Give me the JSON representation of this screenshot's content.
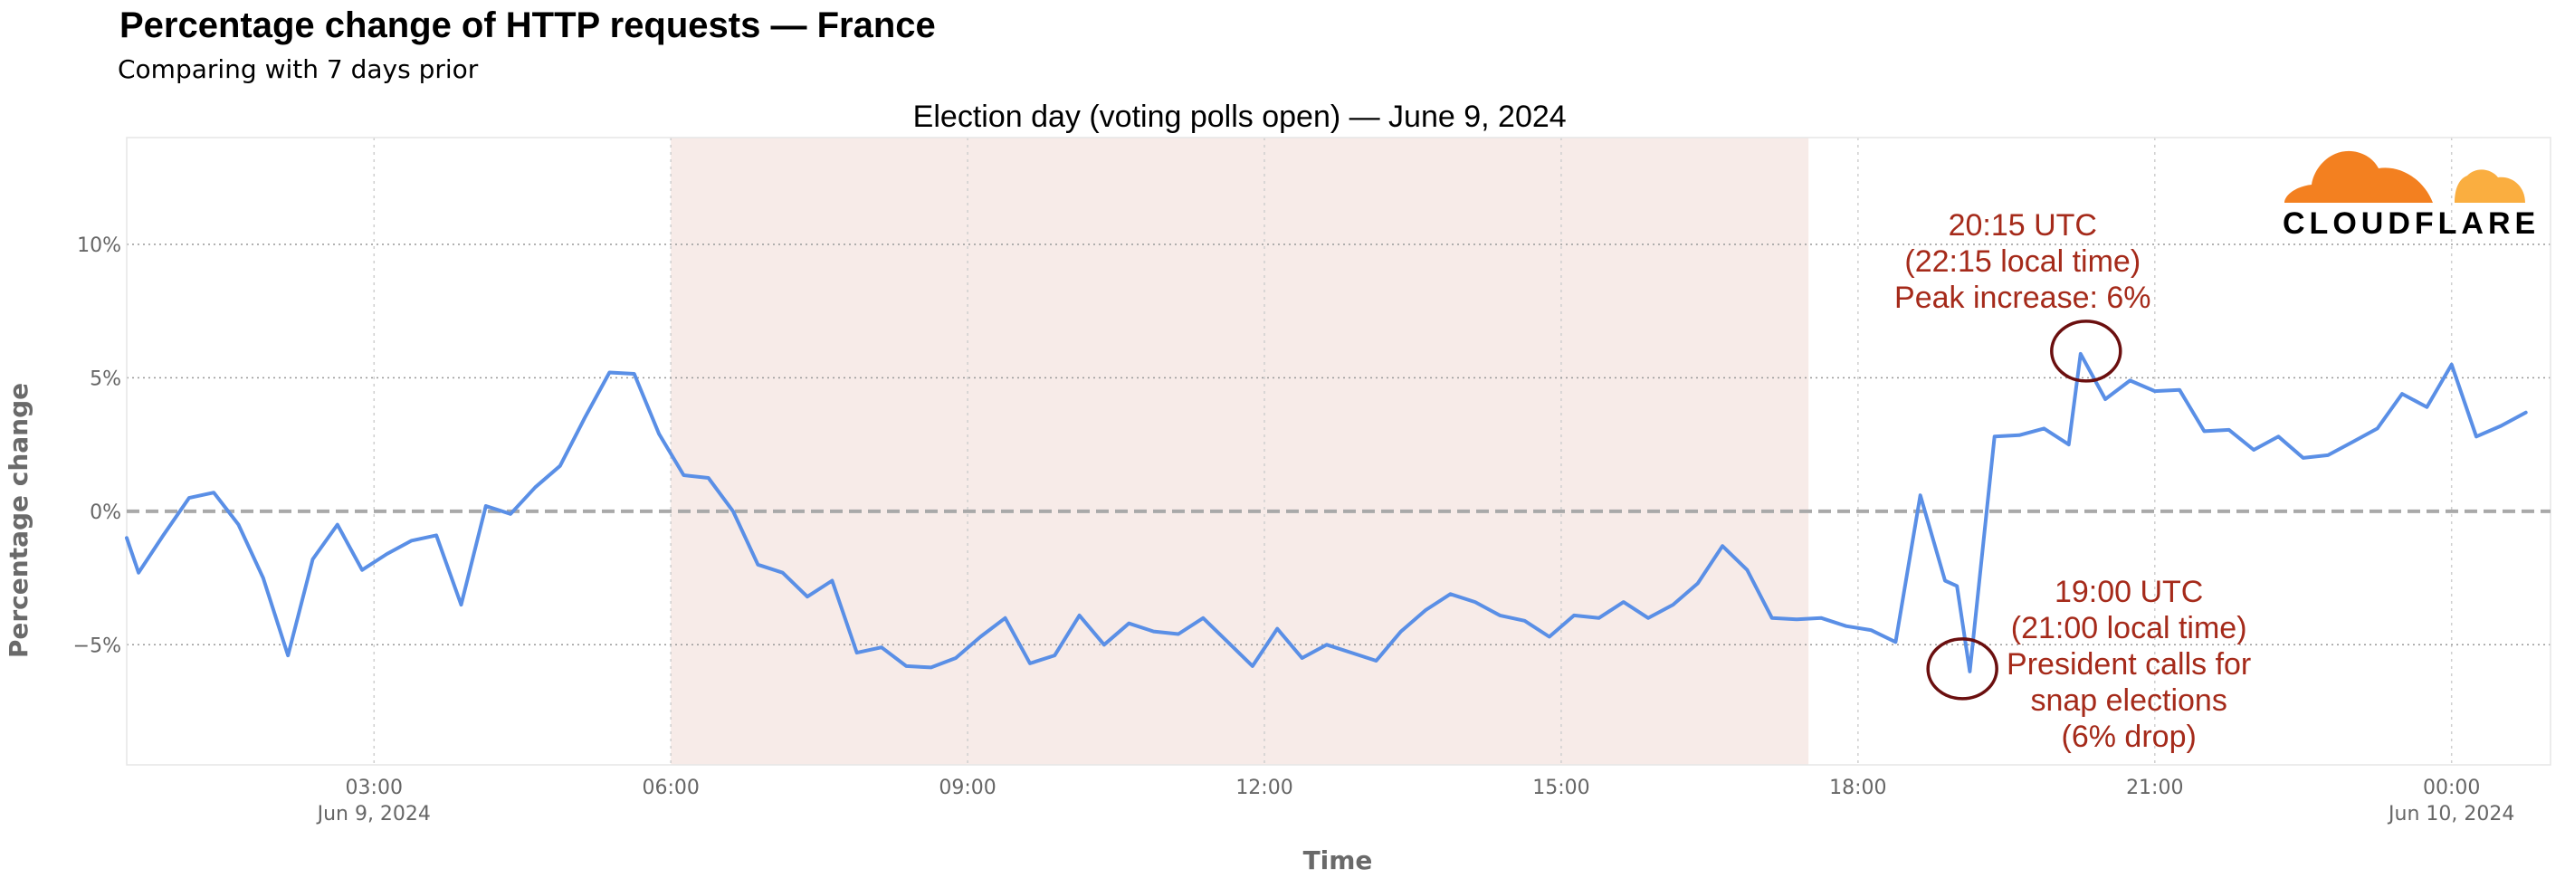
{
  "title": "Percentage change of HTTP requests — France",
  "subtitle": "Comparing with 7 days prior",
  "logo": {
    "text": "CLOUDFLARE",
    "colors": [
      "#f38020",
      "#faae40"
    ]
  },
  "chart_data": {
    "type": "line",
    "xlabel": "Time",
    "ylabel": "Percentage change",
    "x_range": [
      "2024-06-09 00:30",
      "2024-06-10 01:00"
    ],
    "ylim": [
      -9.5,
      14
    ],
    "grid": true,
    "line_color": "#5a8fe6",
    "x_ticks": [
      {
        "t": 3.0,
        "label": "03:00",
        "sublabel": "Jun 9, 2024"
      },
      {
        "t": 6.0,
        "label": "06:00",
        "sublabel": ""
      },
      {
        "t": 9.0,
        "label": "09:00",
        "sublabel": ""
      },
      {
        "t": 12.0,
        "label": "12:00",
        "sublabel": ""
      },
      {
        "t": 15.0,
        "label": "15:00",
        "sublabel": ""
      },
      {
        "t": 18.0,
        "label": "18:00",
        "sublabel": ""
      },
      {
        "t": 21.0,
        "label": "21:00",
        "sublabel": ""
      },
      {
        "t": 24.0,
        "label": "00:00",
        "sublabel": "Jun 10, 2024"
      }
    ],
    "y_ticks": [
      {
        "v": 10,
        "label": "10%"
      },
      {
        "v": 5,
        "label": "5%"
      },
      {
        "v": 0,
        "label": "0%"
      },
      {
        "v": -5,
        "label": "−5%"
      }
    ],
    "shaded_region": {
      "from": 6.0,
      "to": 17.5,
      "color": "#f7ebe8",
      "label": "Election day (voting polls open) — June 9, 2024"
    },
    "series": [
      {
        "x": [
          0.5,
          0.62,
          0.87,
          1.13,
          1.38,
          1.63,
          1.88,
          2.13,
          2.38,
          2.63,
          2.88,
          3.13,
          3.38,
          3.63,
          3.88,
          4.13,
          4.38,
          4.63,
          4.88,
          5.13,
          5.38,
          5.63,
          5.88,
          6.13,
          6.38,
          6.63,
          6.88,
          7.13,
          7.38,
          7.63,
          7.88,
          8.13,
          8.38,
          8.63,
          8.88,
          9.13,
          9.38,
          9.63,
          9.88,
          10.13,
          10.38,
          10.63,
          10.88,
          11.13,
          11.38,
          11.63,
          11.88,
          12.13,
          12.38,
          12.63,
          12.88,
          13.13,
          13.38,
          13.63,
          13.88,
          14.13,
          14.38,
          14.63,
          14.88,
          15.13,
          15.38,
          15.63,
          15.88,
          16.13,
          16.38,
          16.63,
          16.88,
          17.13,
          17.38,
          17.63,
          17.88,
          18.13,
          18.38,
          18.63,
          18.88,
          19.0,
          19.13,
          19.38,
          19.63,
          19.88,
          20.13,
          20.25,
          20.5,
          20.75,
          21.0,
          21.25,
          21.5,
          21.75,
          22.0,
          22.25,
          22.5,
          22.75,
          23.0,
          23.25,
          23.5,
          23.75,
          24.0,
          24.25,
          24.5,
          24.75
        ],
        "y": [
          -1.0,
          -2.3,
          -0.9,
          0.5,
          0.7,
          -0.5,
          -2.5,
          -5.4,
          -1.8,
          -0.5,
          -2.2,
          -1.6,
          -1.1,
          -0.9,
          -3.5,
          0.2,
          -0.1,
          0.9,
          1.7,
          3.5,
          5.2,
          5.15,
          2.9,
          1.35,
          1.25,
          0.0,
          -2.0,
          -2.3,
          -3.2,
          -2.6,
          -5.3,
          -5.1,
          -5.8,
          -5.85,
          -5.5,
          -4.7,
          -4.0,
          -5.7,
          -5.4,
          -3.9,
          -5.0,
          -4.2,
          -4.5,
          -4.6,
          -4.0,
          -4.9,
          -5.8,
          -4.4,
          -5.5,
          -5.0,
          -5.3,
          -5.6,
          -4.5,
          -3.7,
          -3.1,
          -3.4,
          -3.9,
          -4.1,
          -4.7,
          -3.9,
          -4.0,
          -3.4,
          -4.0,
          -3.5,
          -2.7,
          -1.3,
          -2.2,
          -4.0,
          -4.05,
          -4.0,
          -4.3,
          -4.45,
          -4.9,
          0.6,
          -2.6,
          -2.8,
          -6.0,
          2.8,
          2.85,
          3.1,
          2.5,
          5.9,
          4.2,
          4.9,
          4.5,
          4.55,
          3.0,
          3.05,
          2.3,
          2.8,
          2.0,
          2.1,
          2.6,
          3.1,
          4.4,
          3.9,
          5.5,
          2.8,
          3.2,
          3.7
        ]
      }
    ],
    "annotations": [
      {
        "t": 20.25,
        "v": 6.0,
        "lines": [
          "20:15 UTC",
          "(22:15 local time)",
          "Peak increase: 6%"
        ],
        "position": "above"
      },
      {
        "t": 19.0,
        "v": -5.9,
        "lines": [
          "19:00 UTC",
          "(21:00 local time)",
          "President calls for",
          "snap elections",
          "(6% drop)"
        ],
        "position": "right"
      }
    ]
  }
}
